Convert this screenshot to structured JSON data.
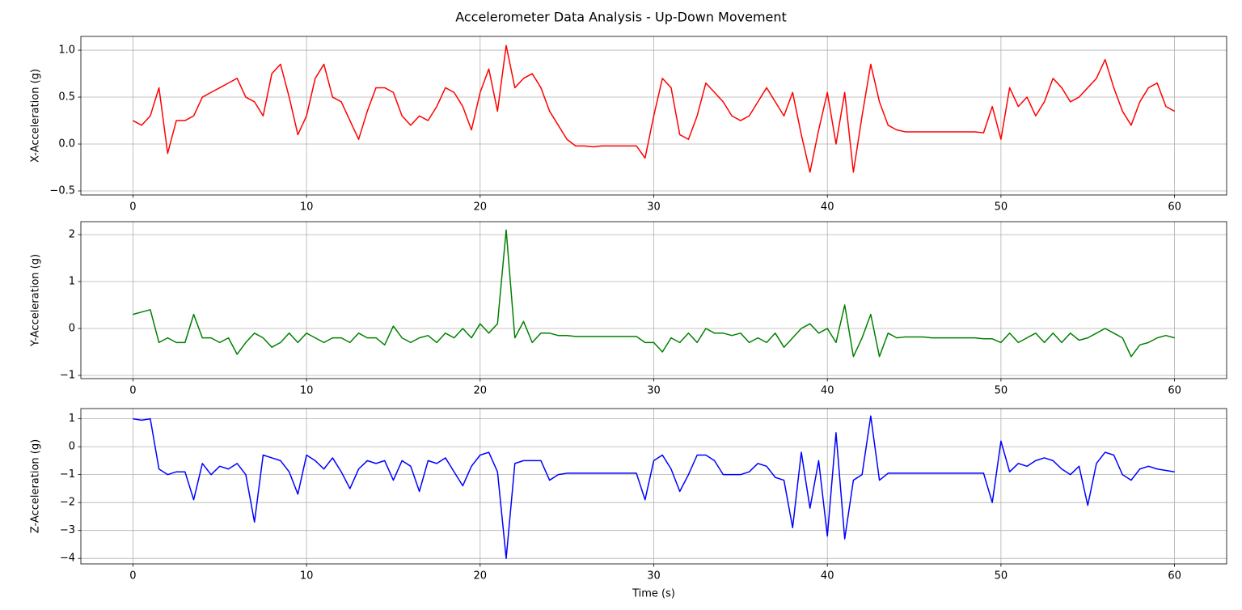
{
  "title": "Accelerometer Data Analysis - Up-Down Movement",
  "chart_data": [
    {
      "type": "line",
      "ylabel": "X-Acceleration (g)",
      "color": "#ff0000",
      "grid": true,
      "x": [
        0,
        0.5,
        1,
        1.5,
        2,
        2.5,
        3,
        3.5,
        4,
        4.5,
        5,
        5.5,
        6,
        6.5,
        7,
        7.5,
        8,
        8.5,
        9,
        9.5,
        10,
        10.5,
        11,
        11.5,
        12,
        12.5,
        13,
        13.5,
        14,
        14.5,
        15,
        15.5,
        16,
        16.5,
        17,
        17.5,
        18,
        18.5,
        19,
        19.5,
        20,
        20.5,
        21,
        21.5,
        22,
        22.5,
        23,
        23.5,
        24,
        24.5,
        25,
        25.5,
        26,
        26.5,
        27,
        27.5,
        28,
        28.5,
        29,
        29.5,
        30,
        30.5,
        31,
        31.5,
        32,
        32.5,
        33,
        33.5,
        34,
        34.5,
        35,
        35.5,
        36,
        36.5,
        37,
        37.5,
        38,
        38.5,
        39,
        39.5,
        40,
        40.5,
        41,
        41.5,
        42,
        42.5,
        43,
        43.5,
        44,
        44.5,
        45,
        45.5,
        46,
        46.5,
        47,
        47.5,
        48,
        48.5,
        49,
        49.5,
        50,
        50.5,
        51,
        51.5,
        52,
        52.5,
        53,
        53.5,
        54,
        54.5,
        55,
        55.5,
        56,
        56.5,
        57,
        57.5,
        58,
        58.5,
        59,
        59.5,
        60
      ],
      "values": [
        0.25,
        0.2,
        0.3,
        0.6,
        -0.1,
        0.25,
        0.25,
        0.3,
        0.5,
        0.55,
        0.6,
        0.65,
        0.7,
        0.5,
        0.45,
        0.3,
        0.75,
        0.85,
        0.5,
        0.1,
        0.3,
        0.7,
        0.85,
        0.5,
        0.45,
        0.25,
        0.05,
        0.35,
        0.6,
        0.6,
        0.55,
        0.3,
        0.2,
        0.3,
        0.25,
        0.4,
        0.6,
        0.55,
        0.4,
        0.15,
        0.55,
        0.8,
        0.35,
        1.05,
        0.6,
        0.7,
        0.75,
        0.6,
        0.35,
        0.2,
        0.05,
        -0.02,
        -0.02,
        -0.03,
        -0.02,
        -0.02,
        -0.02,
        -0.02,
        -0.02,
        -0.15,
        0.3,
        0.7,
        0.6,
        0.1,
        0.05,
        0.3,
        0.65,
        0.55,
        0.45,
        0.3,
        0.25,
        0.3,
        0.45,
        0.6,
        0.45,
        0.3,
        0.55,
        0.1,
        -0.3,
        0.15,
        0.55,
        0.0,
        0.55,
        -0.3,
        0.3,
        0.85,
        0.45,
        0.2,
        0.15,
        0.13,
        0.13,
        0.13,
        0.13,
        0.13,
        0.13,
        0.13,
        0.13,
        0.13,
        0.12,
        0.4,
        0.05,
        0.6,
        0.4,
        0.5,
        0.3,
        0.45,
        0.7,
        0.6,
        0.45,
        0.5,
        0.6,
        0.7,
        0.9,
        0.6,
        0.35,
        0.2,
        0.45,
        0.6,
        0.65,
        0.4,
        0.35
      ],
      "xlim": [
        -3,
        63
      ],
      "xticks": [
        0,
        10,
        20,
        30,
        40,
        50,
        60
      ],
      "ylim": [
        -0.543,
        1.147
      ],
      "yticks": [
        {
          "value": -0.5,
          "label": "−0.5"
        },
        {
          "value": 0,
          "label": "0.0"
        },
        {
          "value": 0.5,
          "label": "0.5"
        },
        {
          "value": 1,
          "label": "1.0"
        }
      ]
    },
    {
      "type": "line",
      "ylabel": "Y-Acceleration (g)",
      "color": "#008000",
      "grid": true,
      "x": [
        0,
        0.5,
        1,
        1.5,
        2,
        2.5,
        3,
        3.5,
        4,
        4.5,
        5,
        5.5,
        6,
        6.5,
        7,
        7.5,
        8,
        8.5,
        9,
        9.5,
        10,
        10.5,
        11,
        11.5,
        12,
        12.5,
        13,
        13.5,
        14,
        14.5,
        15,
        15.5,
        16,
        16.5,
        17,
        17.5,
        18,
        18.5,
        19,
        19.5,
        20,
        20.5,
        21,
        21.5,
        22,
        22.5,
        23,
        23.5,
        24,
        24.5,
        25,
        25.5,
        26,
        26.5,
        27,
        27.5,
        28,
        28.5,
        29,
        29.5,
        30,
        30.5,
        31,
        31.5,
        32,
        32.5,
        33,
        33.5,
        34,
        34.5,
        35,
        35.5,
        36,
        36.5,
        37,
        37.5,
        38,
        38.5,
        39,
        39.5,
        40,
        40.5,
        41,
        41.5,
        42,
        42.5,
        43,
        43.5,
        44,
        44.5,
        45,
        45.5,
        46,
        46.5,
        47,
        47.5,
        48,
        48.5,
        49,
        49.5,
        50,
        50.5,
        51,
        51.5,
        52,
        52.5,
        53,
        53.5,
        54,
        54.5,
        55,
        55.5,
        56,
        56.5,
        57,
        57.5,
        58,
        58.5,
        59,
        59.5,
        60
      ],
      "values": [
        0.3,
        0.35,
        0.4,
        -0.3,
        -0.2,
        -0.3,
        -0.3,
        0.3,
        -0.2,
        -0.2,
        -0.3,
        -0.2,
        -0.55,
        -0.3,
        -0.1,
        -0.2,
        -0.4,
        -0.3,
        -0.1,
        -0.3,
        -0.1,
        -0.2,
        -0.3,
        -0.2,
        -0.2,
        -0.3,
        -0.1,
        -0.2,
        -0.2,
        -0.35,
        0.05,
        -0.2,
        -0.3,
        -0.2,
        -0.15,
        -0.3,
        -0.1,
        -0.2,
        0.0,
        -0.2,
        0.1,
        -0.1,
        0.1,
        2.1,
        -0.2,
        0.15,
        -0.3,
        -0.1,
        -0.1,
        -0.15,
        -0.15,
        -0.17,
        -0.17,
        -0.17,
        -0.17,
        -0.17,
        -0.17,
        -0.17,
        -0.17,
        -0.3,
        -0.3,
        -0.5,
        -0.2,
        -0.3,
        -0.1,
        -0.3,
        0.0,
        -0.1,
        -0.1,
        -0.15,
        -0.1,
        -0.3,
        -0.2,
        -0.3,
        -0.1,
        -0.4,
        -0.2,
        0.0,
        0.1,
        -0.1,
        0.0,
        -0.3,
        0.5,
        -0.6,
        -0.2,
        0.3,
        -0.6,
        -0.1,
        -0.2,
        -0.18,
        -0.18,
        -0.18,
        -0.2,
        -0.2,
        -0.2,
        -0.2,
        -0.2,
        -0.2,
        -0.22,
        -0.22,
        -0.3,
        -0.1,
        -0.3,
        -0.2,
        -0.1,
        -0.3,
        -0.1,
        -0.3,
        -0.1,
        -0.25,
        -0.2,
        -0.1,
        0.0,
        -0.1,
        -0.2,
        -0.6,
        -0.35,
        -0.3,
        -0.2,
        -0.15,
        -0.2
      ],
      "xlim": [
        -3,
        63
      ],
      "xticks": [
        0,
        10,
        20,
        30,
        40,
        50,
        60
      ],
      "ylim": [
        -1.069,
        2.276
      ],
      "yticks": [
        {
          "value": -1,
          "label": "−1"
        },
        0,
        1,
        2
      ]
    },
    {
      "type": "line",
      "ylabel": "Z-Acceleration (g)",
      "xlabel": "Time (s)",
      "color": "#0000ff",
      "grid": true,
      "x": [
        0,
        0.5,
        1,
        1.5,
        2,
        2.5,
        3,
        3.5,
        4,
        4.5,
        5,
        5.5,
        6,
        6.5,
        7,
        7.5,
        8,
        8.5,
        9,
        9.5,
        10,
        10.5,
        11,
        11.5,
        12,
        12.5,
        13,
        13.5,
        14,
        14.5,
        15,
        15.5,
        16,
        16.5,
        17,
        17.5,
        18,
        18.5,
        19,
        19.5,
        20,
        20.5,
        21,
        21.5,
        22,
        22.5,
        23,
        23.5,
        24,
        24.5,
        25,
        25.5,
        26,
        26.5,
        27,
        27.5,
        28,
        28.5,
        29,
        29.5,
        30,
        30.5,
        31,
        31.5,
        32,
        32.5,
        33,
        33.5,
        34,
        34.5,
        35,
        35.5,
        36,
        36.5,
        37,
        37.5,
        38,
        38.5,
        39,
        39.5,
        40,
        40.5,
        41,
        41.5,
        42,
        42.5,
        43,
        43.5,
        44,
        44.5,
        45,
        45.5,
        46,
        46.5,
        47,
        47.5,
        48,
        48.5,
        49,
        49.5,
        50,
        50.5,
        51,
        51.5,
        52,
        52.5,
        53,
        53.5,
        54,
        54.5,
        55,
        55.5,
        56,
        56.5,
        57,
        57.5,
        58,
        58.5,
        59,
        59.5,
        60
      ],
      "values": [
        1.0,
        0.95,
        1.0,
        -0.8,
        -1.0,
        -0.9,
        -0.9,
        -1.9,
        -0.6,
        -1.0,
        -0.7,
        -0.8,
        -0.6,
        -1.0,
        -2.7,
        -0.3,
        -0.4,
        -0.5,
        -0.9,
        -1.7,
        -0.3,
        -0.5,
        -0.8,
        -0.4,
        -0.9,
        -1.5,
        -0.8,
        -0.5,
        -0.6,
        -0.5,
        -1.2,
        -0.5,
        -0.7,
        -1.6,
        -0.5,
        -0.6,
        -0.4,
        -0.9,
        -1.4,
        -0.7,
        -0.3,
        -0.2,
        -0.9,
        -4.0,
        -0.6,
        -0.5,
        -0.5,
        -0.5,
        -1.2,
        -1.0,
        -0.95,
        -0.95,
        -0.95,
        -0.95,
        -0.95,
        -0.95,
        -0.95,
        -0.95,
        -0.95,
        -1.9,
        -0.5,
        -0.3,
        -0.8,
        -1.6,
        -1.0,
        -0.3,
        -0.3,
        -0.5,
        -1.0,
        -1.0,
        -1.0,
        -0.9,
        -0.6,
        -0.7,
        -1.1,
        -1.2,
        -2.9,
        -0.2,
        -2.2,
        -0.5,
        -3.2,
        0.5,
        -3.3,
        -1.2,
        -1.0,
        1.1,
        -1.2,
        -0.95,
        -0.95,
        -0.95,
        -0.95,
        -0.95,
        -0.95,
        -0.95,
        -0.95,
        -0.95,
        -0.95,
        -0.95,
        -0.95,
        -2.0,
        0.2,
        -0.9,
        -0.6,
        -0.7,
        -0.5,
        -0.4,
        -0.5,
        -0.8,
        -1.0,
        -0.7,
        -2.1,
        -0.6,
        -0.2,
        -0.3,
        -1.0,
        -1.2,
        -0.8,
        -0.7,
        -0.8,
        -0.85,
        -0.9
      ],
      "xlim": [
        -3,
        63
      ],
      "xticks": [
        0,
        10,
        20,
        30,
        40,
        50,
        60
      ],
      "ylim": [
        -4.197,
        1.366
      ],
      "yticks": [
        {
          "value": -4,
          "label": "−4"
        },
        {
          "value": -3,
          "label": "−3"
        },
        {
          "value": -2,
          "label": "−2"
        },
        {
          "value": -1,
          "label": "−1"
        },
        0,
        1
      ]
    }
  ]
}
